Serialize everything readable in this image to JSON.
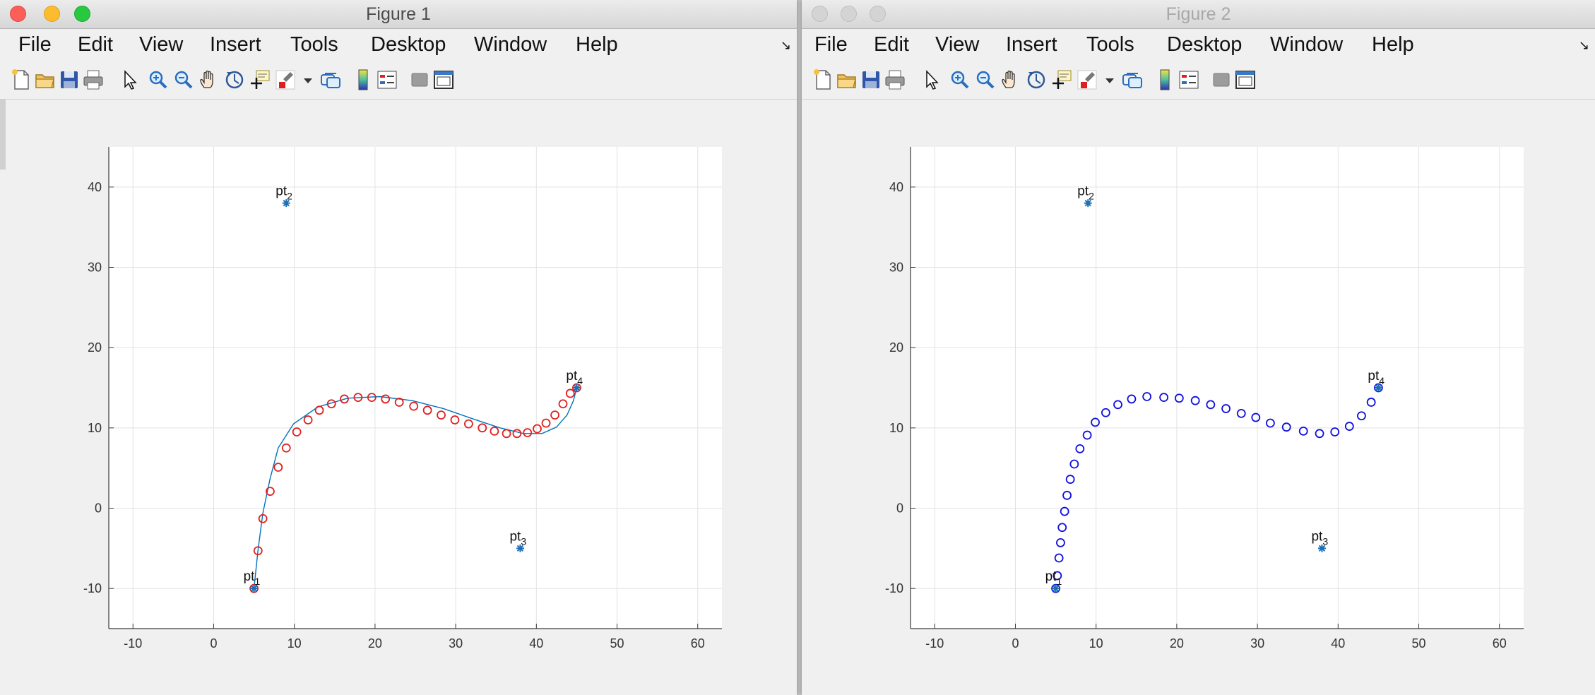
{
  "figure1": {
    "title": "Figure 1",
    "menu": [
      "File",
      "Edit",
      "View",
      "Insert",
      "Tools",
      "Desktop",
      "Window",
      "Help"
    ],
    "tools": [
      "new-figure-icon",
      "open-file-icon",
      "save-icon",
      "print-icon",
      "pointer-icon",
      "zoom-in-icon",
      "zoom-out-icon",
      "pan-hand-icon",
      "rotate-3d-icon",
      "data-cursor-icon",
      "brush-icon",
      "dropdown-arrow-icon",
      "link-plot-icon",
      "colorbar-icon",
      "legend-icon",
      "hide-plot-tools-icon",
      "show-plot-tools-icon"
    ]
  },
  "figure2": {
    "title": "Figure 2",
    "menu": [
      "File",
      "Edit",
      "View",
      "Insert",
      "Tools",
      "Desktop",
      "Window",
      "Help"
    ],
    "tools": [
      "new-figure-icon",
      "open-file-icon",
      "save-icon",
      "print-icon",
      "pointer-icon",
      "zoom-in-icon",
      "zoom-out-icon",
      "pan-hand-icon",
      "rotate-3d-icon",
      "data-cursor-icon",
      "brush-icon",
      "dropdown-arrow-icon",
      "link-plot-icon",
      "colorbar-icon",
      "legend-icon",
      "hide-plot-tools-icon",
      "show-plot-tools-icon"
    ]
  },
  "chart_data": [
    {
      "type": "line",
      "title": "",
      "xlabel": "",
      "ylabel": "",
      "xlim": [
        -13,
        63
      ],
      "ylim": [
        -15,
        45
      ],
      "xticks": [
        -10,
        0,
        10,
        20,
        30,
        40,
        50,
        60
      ],
      "yticks": [
        -10,
        0,
        10,
        20,
        30,
        40
      ],
      "grid": true,
      "control_points": [
        {
          "label": "pt",
          "sub": "1",
          "x": 5,
          "y": -10
        },
        {
          "label": "pt",
          "sub": "2",
          "x": 9,
          "y": 38
        },
        {
          "label": "pt",
          "sub": "3",
          "x": 38,
          "y": -5
        },
        {
          "label": "pt",
          "sub": "4",
          "x": 45,
          "y": 15
        }
      ],
      "series": [
        {
          "style": "line",
          "color": "#0072bd",
          "x": [
            5,
            5.5,
            6.1,
            7,
            8,
            9.9,
            12.9,
            16.6,
            20.6,
            24.6,
            28.5,
            32.2,
            35.5,
            38.4,
            40.7,
            42.5,
            43.8,
            44.6,
            45
          ],
          "y": [
            -10,
            -5.2,
            -0.6,
            3.7,
            7.5,
            10.5,
            12.6,
            13.7,
            13.9,
            13.4,
            12.4,
            11.1,
            10,
            9.3,
            9.3,
            10.1,
            11.6,
            13.4,
            15
          ]
        },
        {
          "style": "markers",
          "marker": "o",
          "color": "#e02020",
          "x": [
            5,
            5.5,
            6.1,
            7,
            8,
            9,
            10.3,
            11.7,
            13.1,
            14.6,
            16.2,
            17.9,
            19.6,
            21.3,
            23,
            24.8,
            26.5,
            28.2,
            29.9,
            31.6,
            33.3,
            34.8,
            36.3,
            37.6,
            38.9,
            40.1,
            41.2,
            42.3,
            43.3,
            44.2,
            45
          ],
          "y": [
            -10,
            -5.3,
            -1.3,
            2.1,
            5.1,
            7.5,
            9.5,
            11,
            12.2,
            13,
            13.6,
            13.8,
            13.8,
            13.6,
            13.2,
            12.7,
            12.2,
            11.6,
            11,
            10.5,
            10,
            9.6,
            9.3,
            9.3,
            9.4,
            9.9,
            10.6,
            11.6,
            13,
            14.3,
            15
          ]
        }
      ]
    },
    {
      "type": "scatter",
      "title": "",
      "xlabel": "",
      "ylabel": "",
      "xlim": [
        -13,
        63
      ],
      "ylim": [
        -15,
        45
      ],
      "xticks": [
        -10,
        0,
        10,
        20,
        30,
        40,
        50,
        60
      ],
      "yticks": [
        -10,
        0,
        10,
        20,
        30,
        40
      ],
      "grid": true,
      "control_points": [
        {
          "label": "pt",
          "sub": "1",
          "x": 5,
          "y": -10
        },
        {
          "label": "pt",
          "sub": "2",
          "x": 9,
          "y": 38
        },
        {
          "label": "pt",
          "sub": "3",
          "x": 38,
          "y": -5
        },
        {
          "label": "pt",
          "sub": "4",
          "x": 45,
          "y": 15
        }
      ],
      "series": [
        {
          "style": "markers",
          "marker": "o",
          "color": "#1010e0",
          "x": [
            5,
            5.2,
            5.4,
            5.6,
            5.8,
            6.1,
            6.4,
            6.8,
            7.3,
            8,
            8.9,
            9.9,
            11.2,
            12.7,
            14.4,
            16.3,
            18.4,
            20.3,
            22.3,
            24.2,
            26.1,
            28,
            29.8,
            31.6,
            33.6,
            35.7,
            37.7,
            39.6,
            41.4,
            42.9,
            44.1,
            45
          ],
          "y": [
            -10,
            -8.4,
            -6.2,
            -4.3,
            -2.4,
            -0.4,
            1.6,
            3.6,
            5.5,
            7.4,
            9.1,
            10.7,
            11.9,
            12.9,
            13.6,
            13.9,
            13.8,
            13.7,
            13.4,
            12.9,
            12.4,
            11.8,
            11.3,
            10.6,
            10.1,
            9.6,
            9.3,
            9.5,
            10.2,
            11.5,
            13.2,
            15
          ]
        }
      ]
    }
  ]
}
